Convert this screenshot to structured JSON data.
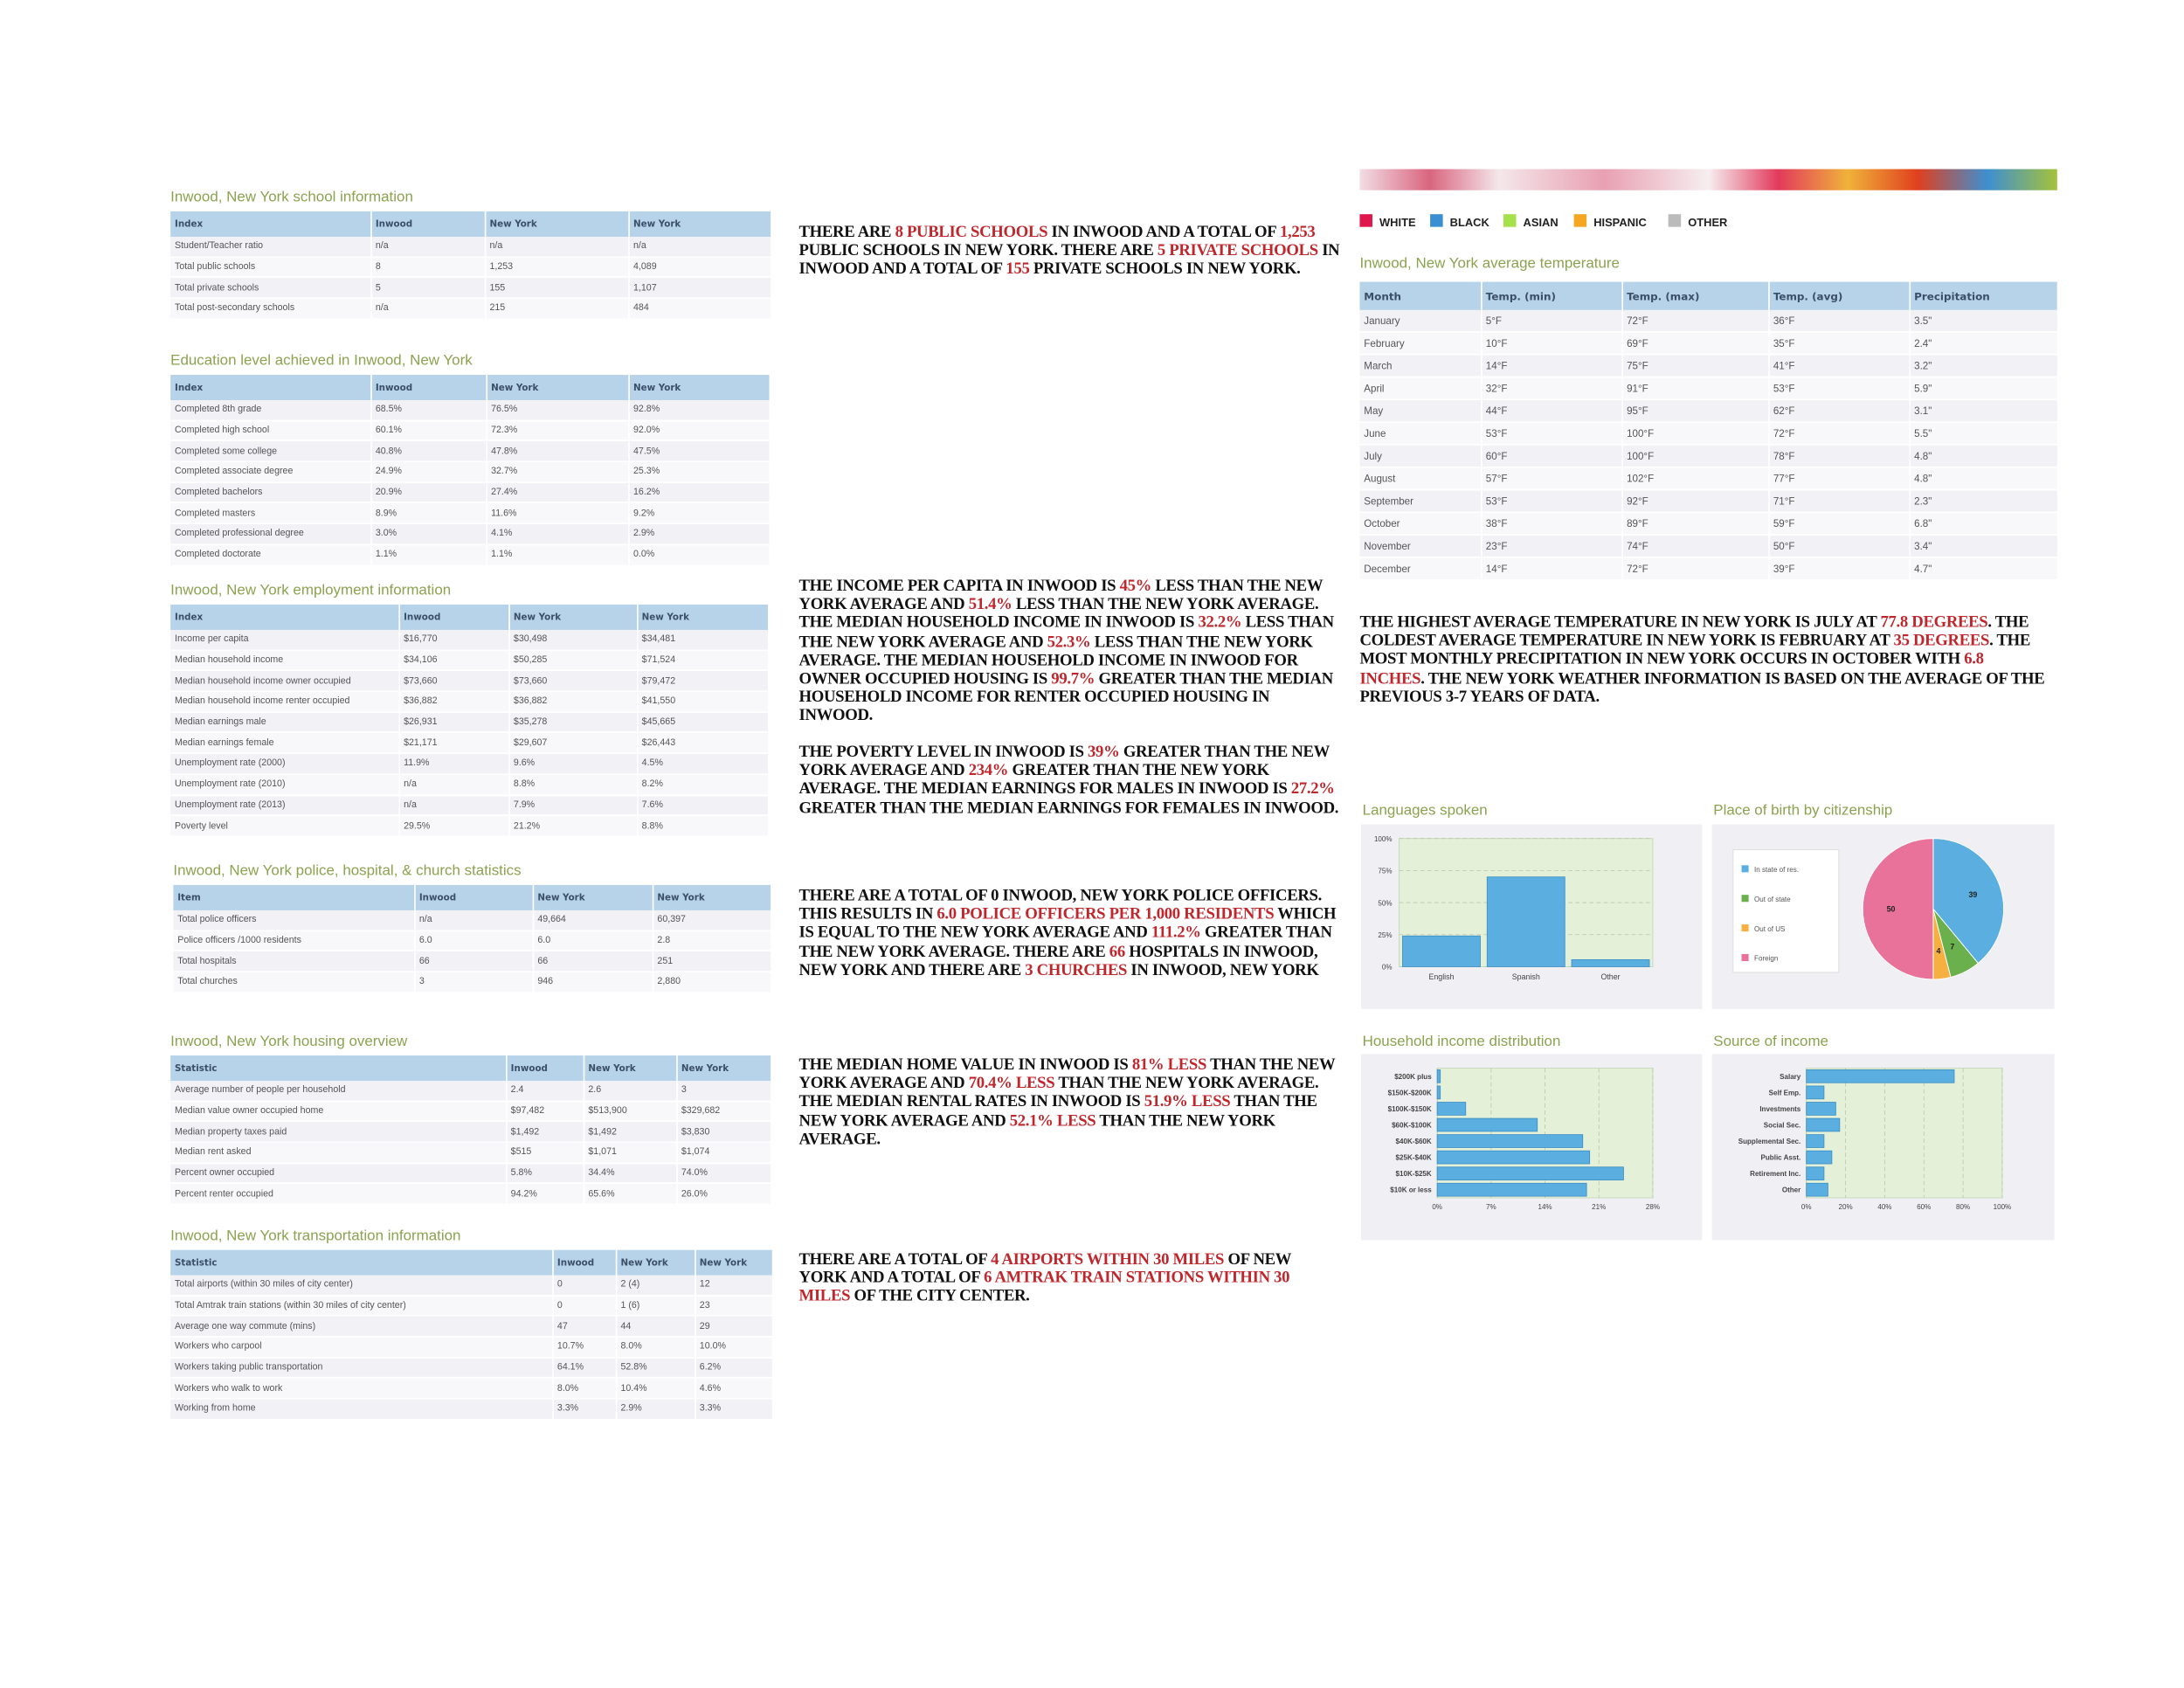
{
  "legend": [
    {
      "label": "WHITE",
      "color": "#e0174f"
    },
    {
      "label": "BLACK",
      "color": "#3a8fd0"
    },
    {
      "label": "ASIAN",
      "color": "#a6e04a"
    },
    {
      "label": "HISPANIC",
      "color": "#f5a623"
    },
    {
      "label": "OTHER",
      "color": "#bbbbbb"
    }
  ],
  "tables": [
    {
      "title": "Inwood, New York school information",
      "header": [
        "Index",
        "Inwood",
        "New York",
        "New York"
      ],
      "rows": [
        [
          "Student/Teacher ratio",
          "n/a",
          "n/a",
          "n/a"
        ],
        [
          "Total public schools",
          "8",
          "1,253",
          "4,089"
        ],
        [
          "Total private schools",
          "5",
          "155",
          "1,107"
        ],
        [
          "Total post-secondary schools",
          "n/a",
          "215",
          "484"
        ]
      ]
    },
    {
      "title": "Education level achieved in Inwood, New York",
      "header": [
        "Index",
        "Inwood",
        "New York",
        "New York"
      ],
      "rows": [
        [
          "Completed 8th grade",
          "68.5%",
          "76.5%",
          "92.8%"
        ],
        [
          "Completed high school",
          "60.1%",
          "72.3%",
          "92.0%"
        ],
        [
          "Completed some college",
          "40.8%",
          "47.8%",
          "47.5%"
        ],
        [
          "Completed associate degree",
          "24.9%",
          "32.7%",
          "25.3%"
        ],
        [
          "Completed bachelors",
          "20.9%",
          "27.4%",
          "16.2%"
        ],
        [
          "Completed masters",
          "8.9%",
          "11.6%",
          "9.2%"
        ],
        [
          "Completed professional degree",
          "3.0%",
          "4.1%",
          "2.9%"
        ],
        [
          "Completed doctorate",
          "1.1%",
          "1.1%",
          "0.0%"
        ]
      ]
    },
    {
      "title": "Inwood, New York employment information",
      "header": [
        "Index",
        "Inwood",
        "New York",
        "New York"
      ],
      "rows": [
        [
          "Income per capita",
          "$16,770",
          "$30,498",
          "$34,481"
        ],
        [
          "Median household income",
          "$34,106",
          "$50,285",
          "$71,524"
        ],
        [
          "Median household income owner occupied",
          "$73,660",
          "$73,660",
          "$79,472"
        ],
        [
          "Median household income renter occupied",
          "$36,882",
          "$36,882",
          "$41,550"
        ],
        [
          "Median earnings male",
          "$26,931",
          "$35,278",
          "$45,665"
        ],
        [
          "Median earnings female",
          "$21,171",
          "$29,607",
          "$26,443"
        ],
        [
          "Unemployment rate (2000)",
          "11.9%",
          "9.6%",
          "4.5%"
        ],
        [
          "Unemployment rate (2010)",
          "n/a",
          "8.8%",
          "8.2%"
        ],
        [
          "Unemployment rate (2013)",
          "n/a",
          "7.9%",
          "7.6%"
        ],
        [
          "Poverty level",
          "29.5%",
          "21.2%",
          "8.8%"
        ]
      ]
    },
    {
      "title": "Inwood, New York police, hospital, & church statistics",
      "header": [
        "Item",
        "Inwood",
        "New York",
        "New York"
      ],
      "rows": [
        [
          "Total police officers",
          "n/a",
          "49,664",
          "60,397"
        ],
        [
          "Police officers /1000 residents",
          "6.0",
          "6.0",
          "2.8"
        ],
        [
          "Total hospitals",
          "66",
          "66",
          "251"
        ],
        [
          "Total churches",
          "3",
          "946",
          "2,880"
        ]
      ]
    },
    {
      "title": "Inwood, New York housing overview",
      "header": [
        "Statistic",
        "Inwood",
        "New York",
        "New York"
      ],
      "rows": [
        [
          "Average number of people per household",
          "2.4",
          "2.6",
          "3"
        ],
        [
          "Median value owner occupied home",
          "$97,482",
          "$513,900",
          "$329,682"
        ],
        [
          "Median property taxes paid",
          "$1,492",
          "$1,492",
          "$3,830"
        ],
        [
          "Median rent asked",
          "$515",
          "$1,071",
          "$1,074"
        ],
        [
          "Percent owner occupied",
          "5.8%",
          "34.4%",
          "74.0%"
        ],
        [
          "Percent renter occupied",
          "94.2%",
          "65.6%",
          "26.0%"
        ]
      ]
    },
    {
      "title": "Inwood, New York transportation information",
      "header": [
        "Statistic",
        "Inwood",
        "New York",
        "New York"
      ],
      "rows": [
        [
          "Total airports (within 30 miles of city center)",
          "0",
          "2 (4)",
          "12"
        ],
        [
          "Total Amtrak train stations (within 30 miles of city center)",
          "0",
          "1 (6)",
          "23"
        ],
        [
          "Average one way commute (mins)",
          "47",
          "44",
          "29"
        ],
        [
          "Workers who carpool",
          "10.7%",
          "8.0%",
          "10.0%"
        ],
        [
          "Workers taking public transportation",
          "64.1%",
          "52.8%",
          "6.2%"
        ],
        [
          "Workers who walk to work",
          "8.0%",
          "10.4%",
          "4.6%"
        ],
        [
          "Working from home",
          "3.3%",
          "2.9%",
          "3.3%"
        ]
      ]
    },
    {
      "title": "Inwood, New York average temperature",
      "header": [
        "Month",
        "Temp. (min)",
        "Temp. (max)",
        "Temp. (avg)",
        "Precipitation"
      ],
      "rows": [
        [
          "January",
          "5°F",
          "72°F",
          "36°F",
          "3.5\""
        ],
        [
          "February",
          "10°F",
          "69°F",
          "35°F",
          "2.4\""
        ],
        [
          "March",
          "14°F",
          "75°F",
          "41°F",
          "3.2\""
        ],
        [
          "April",
          "32°F",
          "91°F",
          "53°F",
          "5.9\""
        ],
        [
          "May",
          "44°F",
          "95°F",
          "62°F",
          "3.1\""
        ],
        [
          "June",
          "53°F",
          "100°F",
          "72°F",
          "5.5\""
        ],
        [
          "July",
          "60°F",
          "100°F",
          "78°F",
          "4.8\""
        ],
        [
          "August",
          "57°F",
          "102°F",
          "77°F",
          "4.8\""
        ],
        [
          "September",
          "53°F",
          "92°F",
          "71°F",
          "2.3\""
        ],
        [
          "October",
          "38°F",
          "89°F",
          "59°F",
          "6.8\""
        ],
        [
          "November",
          "23°F",
          "74°F",
          "50°F",
          "3.4\""
        ],
        [
          "December",
          "14°F",
          "72°F",
          "39°F",
          "4.7\""
        ]
      ]
    }
  ],
  "paragraphs": [
    [
      "THERE ARE ",
      {
        "t": "8 PUBLIC SCHOOLS",
        "red": true
      },
      " IN INWOOD AND A TOTAL OF ",
      {
        "t": "1,253",
        "red": true
      },
      " PUBLIC SCHOOLS IN NEW YORK. THERE ARE ",
      {
        "t": "5 PRIVATE SCHOOLS",
        "red": true
      },
      " IN INWOOD AND A TOTAL OF ",
      {
        "t": "155",
        "red": true
      },
      " PRIVATE SCHOOLS IN NEW YORK."
    ],
    [
      "THE INCOME PER CAPITA IN INWOOD IS ",
      {
        "t": "45%",
        "red": true
      },
      " LESS THAN THE NEW YORK AVERAGE AND ",
      {
        "t": "51.4%",
        "red": true
      },
      " LESS THAN THE NEW YORK AVERAGE. THE MEDIAN HOUSEHOLD INCOME IN INWOOD IS ",
      {
        "t": "32.2%",
        "red": true
      },
      " LESS THAN THE NEW YORK AVERAGE AND ",
      {
        "t": "52.3%",
        "red": true
      },
      " LESS THAN THE NEW YORK AVERAGE. THE MEDIAN HOUSEHOLD INCOME IN INWOOD FOR OWNER OCCUPIED HOUSING IS ",
      {
        "t": "99.7%",
        "red": true
      },
      " GREATER THAN THE MEDIAN HOUSEHOLD INCOME FOR RENTER OCCUPIED HOUSING IN INWOOD."
    ],
    [
      "THE POVERTY LEVEL IN INWOOD IS ",
      {
        "t": "39%",
        "red": true
      },
      " GREATER THAN THE NEW YORK AVERAGE AND ",
      {
        "t": "234%",
        "red": true
      },
      " GREATER THAN THE NEW YORK AVERAGE. THE MEDIAN EARNINGS FOR MALES IN INWOOD IS ",
      {
        "t": "27.2%",
        "red": true
      },
      " GREATER THAN THE MEDIAN EARNINGS FOR FEMALES IN INWOOD."
    ],
    [
      "THERE ARE A TOTAL OF 0 INWOOD, NEW YORK POLICE OFFICERS. THIS RESULTS IN ",
      {
        "t": "6.0 POLICE OFFICERS PER 1,000 RESIDENTS",
        "red": true
      },
      " WHICH IS EQUAL TO THE NEW YORK AVERAGE AND ",
      {
        "t": "111.2%",
        "red": true
      },
      " GREATER THAN THE NEW YORK AVERAGE. THERE ARE ",
      {
        "t": "66",
        "red": true
      },
      " HOSPITALS IN INWOOD, NEW YORK AND THERE ARE ",
      {
        "t": "3 CHURCHES",
        "red": true
      },
      " IN INWOOD, NEW YORK"
    ],
    [
      "THE MEDIAN HOME VALUE IN INWOOD IS ",
      {
        "t": "81% LESS",
        "red": true
      },
      " THAN THE NEW YORK AVERAGE AND ",
      {
        "t": "70.4% LESS",
        "red": true
      },
      " THAN THE NEW YORK AVERAGE. THE MEDIAN RENTAL RATES IN INWOOD IS ",
      {
        "t": "51.9% LESS",
        "red": true
      },
      " THAN THE NEW YORK AVERAGE AND ",
      {
        "t": "52.1% LESS",
        "red": true
      },
      " THAN THE NEW YORK AVERAGE."
    ],
    [
      "THERE ARE A TOTAL OF ",
      {
        "t": "4 AIRPORTS WITHIN 30 MILES",
        "red": true
      },
      " OF NEW YORK AND A TOTAL OF ",
      {
        "t": "6 AMTRAK TRAIN STATIONS WITHIN 30 MILES",
        "red": true
      },
      " OF THE CITY CENTER."
    ],
    [
      "THE HIGHEST AVERAGE TEMPERATURE IN NEW YORK IS JULY AT ",
      {
        "t": "77.8 DEGREES",
        "red": true
      },
      ". THE COLDEST AVERAGE TEMPERATURE IN NEW YORK IS FEBRUARY AT ",
      {
        "t": "35 DEGREES",
        "red": true
      },
      ". THE MOST MONTHLY PRECIPITATION IN NEW YORK OCCURS IN OCTOBER WITH ",
      {
        "t": "6.8 INCHES",
        "red": true
      },
      ". THE NEW YORK WEATHER INFORMATION IS BASED ON THE AVERAGE OF THE PREVIOUS 3-7 YEARS OF DATA."
    ]
  ],
  "chart_data": [
    {
      "type": "bar",
      "title": "Languages spoken",
      "categories": [
        "English",
        "Spanish",
        "Other"
      ],
      "values": [
        24,
        70,
        5.5
      ],
      "color": "#5aafe0",
      "ylim": [
        0,
        100
      ],
      "yticks": [
        {
          "value": 0,
          "label": "0%"
        },
        {
          "value": 25,
          "label": "25%"
        },
        {
          "value": 50,
          "label": "50%"
        },
        {
          "value": 75,
          "label": "75%"
        },
        {
          "value": 100,
          "label": "100%"
        }
      ],
      "grid": true
    },
    {
      "type": "pie",
      "title": "Place of birth by citizenship",
      "categories": [
        "In state of res.",
        "Out of state",
        "Out of US",
        "Foreign"
      ],
      "values": [
        39,
        7,
        4,
        50
      ],
      "colors": [
        "#5aafe0",
        "#6ab04c",
        "#f5b041",
        "#e8729a"
      ]
    },
    {
      "type": "hbar",
      "title": "Household income distribution",
      "categories": [
        "$200K plus",
        "$150K-$200K",
        "$100K-$150K",
        "$60K-$100K",
        "$40K-$60K",
        "$25K-$40K",
        "$10K-$25K",
        "$10K or less"
      ],
      "values": [
        0.4,
        0.4,
        3.7,
        13,
        18.9,
        19.8,
        24.2,
        19.4
      ],
      "color": "#5aafe0",
      "xlim": [
        0,
        28
      ],
      "xticks": [
        {
          "value": 0,
          "label": "0%"
        },
        {
          "value": 7,
          "label": "7%"
        },
        {
          "value": 14,
          "label": "14%"
        },
        {
          "value": 21,
          "label": "21%"
        },
        {
          "value": 28,
          "label": "28%"
        }
      ],
      "grid": true
    },
    {
      "type": "hbar",
      "title": "Source of income",
      "categories": [
        "Salary",
        "Self Emp.",
        "Investments",
        "Social Sec.",
        "Supplemental Sec.",
        "Public Asst.",
        "Retirement Inc.",
        "Other"
      ],
      "values": [
        75.5,
        9,
        15,
        17,
        9,
        13,
        9,
        11
      ],
      "color": "#5aafe0",
      "xlim": [
        0,
        100
      ],
      "xticks": [
        {
          "value": 0,
          "label": "0%"
        },
        {
          "value": 20,
          "label": "20%"
        },
        {
          "value": 40,
          "label": "40%"
        },
        {
          "value": 60,
          "label": "60%"
        },
        {
          "value": 80,
          "label": "80%"
        },
        {
          "value": 100,
          "label": "100%"
        }
      ],
      "grid": true
    }
  ]
}
